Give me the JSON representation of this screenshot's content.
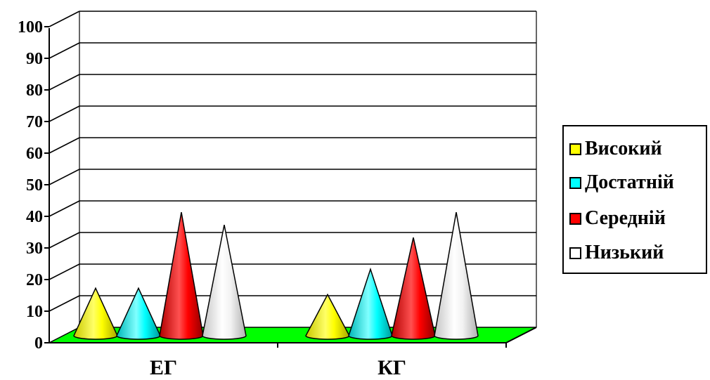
{
  "chart_data": {
    "type": "bar",
    "bar_shape": "cone",
    "categories": [
      "ЕГ",
      "КГ"
    ],
    "series": [
      {
        "name": "Високий",
        "color": "#ffff00",
        "values": [
          15,
          13
        ]
      },
      {
        "name": "Достатній",
        "color": "#00ffff",
        "values": [
          15,
          21
        ]
      },
      {
        "name": "Середній",
        "color": "#ff0000",
        "values": [
          39,
          31
        ]
      },
      {
        "name": "Низький",
        "color": "#ffffff",
        "values": [
          35,
          39
        ]
      }
    ],
    "ylim": [
      0,
      100
    ],
    "yticks": [
      "0",
      "10",
      "20",
      "30",
      "40",
      "50",
      "60",
      "70",
      "80",
      "90",
      "100"
    ],
    "grid": true,
    "floor_color": "#00ff00",
    "legend_position": "right"
  }
}
